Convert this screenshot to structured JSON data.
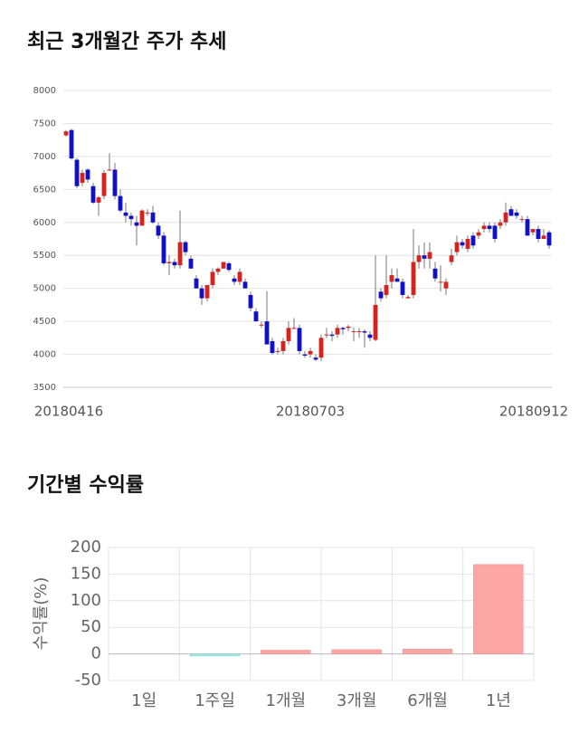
{
  "chart_data": [
    {
      "type": "candlestick",
      "title": "최근 3개월간 주가 추세",
      "categories": [
        "20180416",
        null,
        null,
        null,
        null,
        null,
        null,
        null,
        null,
        null,
        null,
        null,
        null,
        null,
        null,
        null,
        null,
        null,
        null,
        null,
        null,
        null,
        null,
        null,
        null,
        null,
        null,
        null,
        null,
        null,
        null,
        null,
        null,
        null,
        null,
        null,
        null,
        null,
        null,
        null,
        null,
        null,
        null,
        null,
        null,
        "20180703",
        null,
        null,
        null,
        null,
        null,
        null,
        null,
        null,
        null,
        null,
        null,
        null,
        null,
        null,
        null,
        null,
        null,
        null,
        null,
        null,
        null,
        null,
        null,
        null,
        null,
        null,
        null,
        null,
        null,
        null,
        null,
        null,
        null,
        null,
        null,
        null,
        null,
        null,
        null,
        null,
        null,
        "20180912",
        null,
        null
      ],
      "open": [
        7320,
        7400,
        6950,
        6600,
        6800,
        6550,
        6300,
        6400,
        6800,
        6800,
        6400,
        6150,
        6100,
        6000,
        5950,
        6150,
        6150,
        5950,
        5800,
        5380,
        5400,
        5350,
        5700,
        5450,
        5150,
        5000,
        4850,
        5050,
        5250,
        5300,
        5380,
        5150,
        5100,
        5100,
        4900,
        4650,
        4450,
        4500,
        4200,
        4050,
        4050,
        4200,
        4400,
        4400,
        4000,
        4000,
        3950,
        3950,
        4300,
        4300,
        4300,
        4400,
        4400,
        4350,
        4350,
        4350,
        4300,
        4220,
        4950,
        4900,
        5100,
        5150,
        5100,
        4850,
        4900,
        5400,
        5500,
        5450,
        5300,
        5100,
        5000,
        5400,
        5550,
        5700,
        5600,
        5800,
        5800,
        5900,
        5950,
        5950,
        5950,
        6000,
        6200,
        6150,
        6050,
        6050,
        5850,
        5900,
        5750,
        5850
      ],
      "high": [
        7400,
        7420,
        6980,
        6800,
        6820,
        6600,
        6400,
        6800,
        7050,
        6900,
        6500,
        6300,
        6150,
        6100,
        6200,
        6200,
        6250,
        6000,
        5850,
        5500,
        5450,
        6180,
        5720,
        5500,
        5200,
        5050,
        5050,
        5300,
        5320,
        5400,
        5400,
        5200,
        5300,
        5150,
        4950,
        4700,
        4500,
        4960,
        4250,
        4100,
        4250,
        4500,
        4550,
        4450,
        4050,
        4100,
        4000,
        4300,
        4400,
        4350,
        4450,
        4420,
        4450,
        4400,
        4400,
        4380,
        4350,
        5500,
        5000,
        5500,
        5300,
        5300,
        5150,
        4900,
        5900,
        5650,
        5700,
        5700,
        5400,
        5350,
        5150,
        5600,
        5800,
        5750,
        5800,
        5850,
        5900,
        6000,
        6000,
        6000,
        6050,
        6300,
        6250,
        6200,
        6100,
        6100,
        5900,
        5950,
        5900,
        5880
      ],
      "low": [
        7300,
        6950,
        6520,
        6550,
        6600,
        6280,
        6100,
        6350,
        6780,
        6350,
        6150,
        6000,
        5950,
        5650,
        5950,
        6100,
        5980,
        5750,
        5350,
        5200,
        5300,
        5300,
        5500,
        5300,
        5000,
        4750,
        4800,
        5000,
        5200,
        5300,
        5250,
        5050,
        5050,
        5000,
        4650,
        4500,
        4400,
        4150,
        4000,
        4000,
        4000,
        4150,
        4380,
        4000,
        3950,
        3950,
        3900,
        3900,
        4250,
        4200,
        4250,
        4300,
        4350,
        4200,
        4250,
        4100,
        4200,
        4200,
        4800,
        4850,
        5000,
        5100,
        4850,
        4850,
        4850,
        5300,
        5300,
        5300,
        5100,
        4950,
        4900,
        5350,
        5500,
        5600,
        5550,
        5600,
        5750,
        5850,
        5850,
        5700,
        5900,
        5950,
        6100,
        6050,
        6000,
        5800,
        5800,
        5700,
        5750,
        5600
      ],
      "close": [
        7380,
        6970,
        6550,
        6750,
        6650,
        6300,
        6380,
        6750,
        6800,
        6400,
        6180,
        6100,
        6050,
        5950,
        6180,
        6150,
        6000,
        5800,
        5380,
        5400,
        5350,
        5700,
        5550,
        5300,
        5000,
        4850,
        5050,
        5250,
        5300,
        5400,
        5280,
        5100,
        5250,
        5000,
        4700,
        4500,
        4450,
        4150,
        4020,
        4050,
        4200,
        4400,
        4400,
        4050,
        3980,
        4050,
        3920,
        4250,
        4300,
        4280,
        4400,
        4380,
        4420,
        4350,
        4350,
        4330,
        4250,
        4750,
        4850,
        5050,
        5200,
        5100,
        4900,
        4870,
        5400,
        5500,
        5450,
        5550,
        5150,
        5100,
        5100,
        5500,
        5700,
        5650,
        5750,
        5650,
        5850,
        5950,
        5900,
        5750,
        6000,
        6150,
        6100,
        6100,
        6050,
        5800,
        5900,
        5750,
        5800,
        5650
      ],
      "up_color": "#d9221c",
      "down_color": "#1010c8",
      "ylim": [
        3500,
        8000
      ],
      "yticks": [
        3500,
        4000,
        4500,
        5000,
        5500,
        6000,
        6500,
        7000,
        7500,
        8000
      ],
      "grid": true
    },
    {
      "type": "bar",
      "title": "기간별 수익률",
      "ylabel": "수익률(%)",
      "categories": [
        "1일",
        "1주일",
        "1개월",
        "3개월",
        "6개월",
        "1년"
      ],
      "values": [
        0,
        -4,
        7,
        8,
        9,
        168
      ],
      "positive_color": "#fca5a5",
      "negative_color": "#a8e6e2",
      "ylim": [
        -50,
        200
      ],
      "yticks": [
        -50,
        0,
        50,
        100,
        150,
        200
      ],
      "grid": true
    }
  ]
}
